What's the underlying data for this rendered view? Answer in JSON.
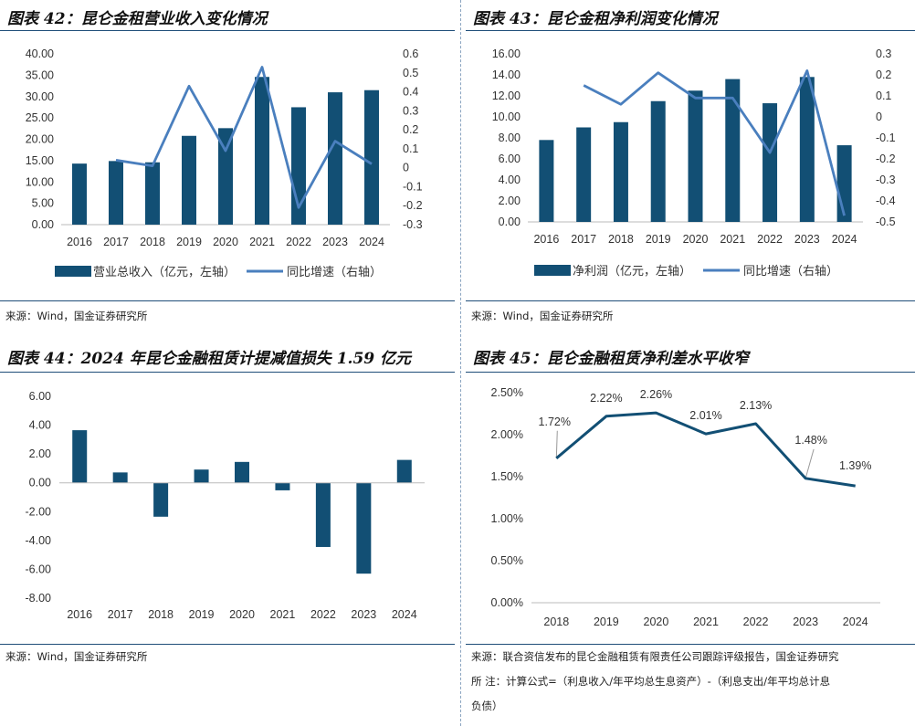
{
  "colors": {
    "bar": "#124f74",
    "line": "#4a7fbe",
    "rule": "#1f4e79"
  },
  "panels": [
    {
      "title": "图表 42：昆仑金租营业收入变化情况",
      "source": "来源：Wind，国金证券研究所"
    },
    {
      "title": "图表 43：昆仑金租净利润变化情况",
      "source": "来源：Wind，国金证券研究所"
    },
    {
      "title": "图表 44：2024 年昆仑金融租赁计提减值损失 1.59 亿元",
      "source": "来源：Wind，国金证券研究所"
    },
    {
      "title": "图表 45：昆仑金融租赁净利差水平收窄",
      "source": "来源：联合资信发布的昆仑金融租赁有限责任公司跟踪评级报告，国金证券研究",
      "source2": "所 注：计算公式=（利息收入/年平均总生息资产）-（利息支出/年平均总计息",
      "source3": "负债）"
    }
  ],
  "chart_data": [
    {
      "type": "bar+line",
      "categories": [
        "2016",
        "2017",
        "2018",
        "2019",
        "2020",
        "2021",
        "2022",
        "2023",
        "2024"
      ],
      "series": [
        {
          "name": "营业总收入（亿元，左轴）",
          "kind": "bar",
          "axis": "left",
          "values": [
            14.3,
            14.9,
            14.6,
            20.8,
            22.6,
            34.6,
            27.5,
            31.0,
            31.5
          ]
        },
        {
          "name": "同比增速（右轴）",
          "kind": "line",
          "axis": "right",
          "values": [
            null,
            0.04,
            0.01,
            0.43,
            0.09,
            0.53,
            -0.21,
            0.14,
            0.02
          ]
        }
      ],
      "yleft": {
        "ticks": [
          "40.00",
          "35.00",
          "30.00",
          "25.00",
          "20.00",
          "15.00",
          "10.00",
          "5.00",
          "0.00"
        ],
        "range": [
          0,
          40
        ]
      },
      "yright": {
        "ticks": [
          "0.6",
          "0.5",
          "0.4",
          "0.3",
          "0.2",
          "0.1",
          "0",
          "-0.1",
          "-0.2",
          "-0.3"
        ],
        "range": [
          -0.3,
          0.6
        ]
      }
    },
    {
      "type": "bar+line",
      "categories": [
        "2016",
        "2017",
        "2018",
        "2019",
        "2020",
        "2021",
        "2022",
        "2023",
        "2024"
      ],
      "series": [
        {
          "name": "净利润（亿元，左轴）",
          "kind": "bar",
          "axis": "left",
          "values": [
            7.8,
            9.0,
            9.5,
            11.5,
            12.5,
            13.6,
            11.3,
            13.8,
            7.3
          ]
        },
        {
          "name": "同比增速（右轴）",
          "kind": "line",
          "axis": "right",
          "values": [
            null,
            0.15,
            0.06,
            0.21,
            0.09,
            0.09,
            -0.17,
            0.22,
            -0.47
          ]
        }
      ],
      "yleft": {
        "ticks": [
          "16.00",
          "14.00",
          "12.00",
          "10.00",
          "8.00",
          "6.00",
          "4.00",
          "2.00",
          "0.00"
        ],
        "range": [
          0,
          16
        ]
      },
      "yright": {
        "ticks": [
          "0.3",
          "0.2",
          "0.1",
          "0",
          "-0.1",
          "-0.2",
          "-0.3",
          "-0.4",
          "-0.5"
        ],
        "range": [
          -0.5,
          0.3
        ]
      }
    },
    {
      "type": "bar",
      "categories": [
        "2016",
        "2017",
        "2018",
        "2019",
        "2020",
        "2021",
        "2022",
        "2023",
        "2024"
      ],
      "values": [
        3.65,
        0.72,
        -2.35,
        0.92,
        1.45,
        -0.52,
        -4.45,
        -6.3,
        1.59
      ],
      "yticks": [
        "6.00",
        "4.00",
        "2.00",
        "0.00",
        "-2.00",
        "-4.00",
        "-6.00",
        "-8.00"
      ],
      "ylim": [
        -8,
        6
      ]
    },
    {
      "type": "line",
      "categories": [
        "2018",
        "2019",
        "2020",
        "2021",
        "2022",
        "2023",
        "2024"
      ],
      "values": [
        1.72,
        2.22,
        2.26,
        2.01,
        2.13,
        1.48,
        1.39
      ],
      "labels": [
        "1.72%",
        "2.22%",
        "2.26%",
        "2.01%",
        "2.13%",
        "1.48%",
        "1.39%"
      ],
      "yticks": [
        "2.50%",
        "2.00%",
        "1.50%",
        "1.00%",
        "0.50%",
        "0.00%"
      ],
      "ylim": [
        0,
        2.5
      ]
    }
  ]
}
